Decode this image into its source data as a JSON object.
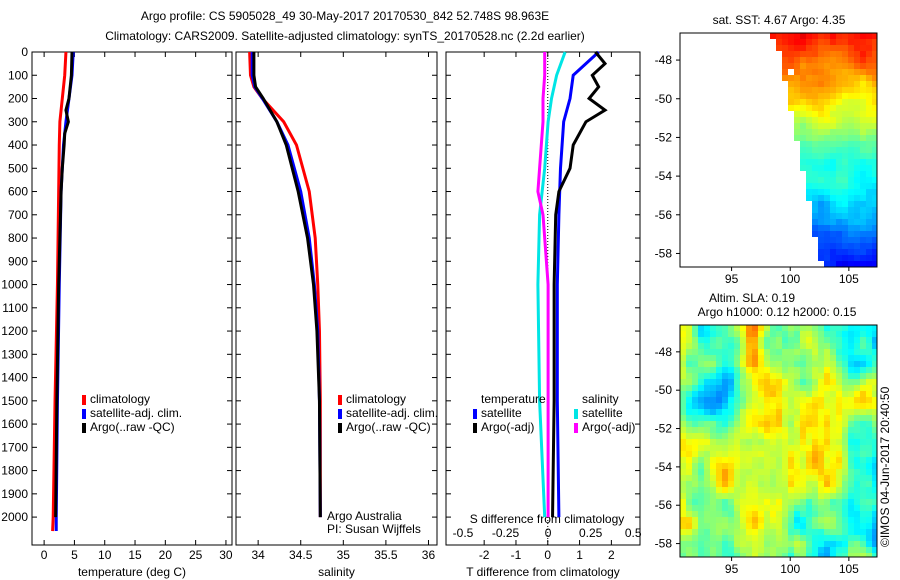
{
  "title_line1": "Argo profile: CS 5905028_49 30-May-2017 20170530_842 52.748S 98.963E",
  "title_line2": "Climatology: CARS2009. Satellite-adjusted climatology: synTS_20170528.nc (2.2d earlier)",
  "colors": {
    "climatology": "#ff0000",
    "satellite": "#0000ff",
    "argo": "#000000",
    "s_satellite": "#00e5e5",
    "s_argo": "#ff00ff"
  },
  "chart_data": [
    {
      "type": "line",
      "name": "temperature",
      "xlabel": "temperature (deg C)",
      "xlim": [
        -2,
        31
      ],
      "ylim": [
        0,
        2120
      ],
      "xticks": [
        0,
        5,
        10,
        15,
        20,
        25,
        30
      ],
      "yticks": [
        0,
        100,
        200,
        300,
        400,
        500,
        600,
        700,
        800,
        900,
        1000,
        1100,
        1200,
        1300,
        1400,
        1500,
        1600,
        1700,
        1800,
        1900,
        2000
      ],
      "legend": [
        "climatology",
        "satellite-adj. clim.",
        "Argo(..raw -QC)"
      ],
      "series": [
        {
          "name": "climatology",
          "color": "#ff0000",
          "depth": [
            0,
            100,
            200,
            300,
            400,
            600,
            1000,
            1500,
            2000,
            2060
          ],
          "values": [
            3.6,
            3.4,
            3.0,
            2.6,
            2.5,
            2.4,
            2.2,
            1.8,
            1.5,
            1.4
          ]
        },
        {
          "name": "satellite-adj. clim.",
          "color": "#0000ff",
          "depth": [
            0,
            100,
            200,
            300,
            400,
            600,
            1000,
            1500,
            2000,
            2060
          ],
          "values": [
            4.8,
            4.6,
            4.1,
            3.6,
            3.2,
            2.8,
            2.5,
            2.2,
            2.0,
            2.0
          ]
        },
        {
          "name": "Argo(..raw -QC)",
          "color": "#000000",
          "depth": [
            0,
            100,
            200,
            250,
            300,
            350,
            400,
            500,
            600,
            800,
            1000,
            1500,
            2000
          ],
          "values": [
            4.6,
            4.5,
            4.1,
            3.6,
            4.0,
            3.4,
            3.3,
            3.0,
            2.8,
            2.6,
            2.4,
            2.1,
            1.9
          ]
        }
      ]
    },
    {
      "type": "line",
      "name": "salinity",
      "xlabel": "salinity",
      "xlim": [
        33.74,
        36.1
      ],
      "ylim": [
        0,
        2120
      ],
      "xticks": [
        34,
        34.5,
        35,
        35.5,
        36
      ],
      "legend": [
        "climatology",
        "satellite-adj. clim.",
        "Argo(..raw -QC)"
      ],
      "annotation": [
        "Argo Australia",
        "PI: Susan Wijffels"
      ],
      "series": [
        {
          "name": "climatology",
          "color": "#ff0000",
          "depth": [
            0,
            100,
            150,
            200,
            300,
            400,
            600,
            800,
            1000,
            1200,
            1500,
            2000
          ],
          "values": [
            33.9,
            33.91,
            33.95,
            34.05,
            34.3,
            34.45,
            34.6,
            34.67,
            34.7,
            34.72,
            34.73,
            34.73
          ]
        },
        {
          "name": "satellite-adj. clim.",
          "color": "#0000ff",
          "depth": [
            0,
            100,
            150,
            200,
            300,
            400,
            600,
            800,
            1000,
            1200,
            1500,
            2000
          ],
          "values": [
            33.93,
            33.93,
            33.96,
            34.05,
            34.22,
            34.35,
            34.5,
            34.6,
            34.66,
            34.7,
            34.72,
            34.73
          ]
        },
        {
          "name": "Argo(..raw -QC)",
          "color": "#000000",
          "depth": [
            0,
            100,
            150,
            200,
            300,
            400,
            600,
            800,
            1000,
            1200,
            1500,
            2000
          ],
          "values": [
            33.95,
            33.95,
            33.97,
            34.06,
            34.22,
            34.33,
            34.47,
            34.58,
            34.65,
            34.69,
            34.72,
            34.73
          ]
        }
      ]
    },
    {
      "type": "line",
      "name": "difference",
      "xlabel": "T difference from climatology",
      "x2label": "S difference from climatology",
      "xlim": [
        -3.2,
        2.9
      ],
      "x2lim": [
        -0.6,
        0.54
      ],
      "ylim": [
        0,
        2120
      ],
      "xticks": [
        -2,
        -1,
        0,
        1,
        2
      ],
      "x2ticks": [
        -0.5,
        -0.25,
        0,
        0.25,
        0.5
      ],
      "legend_headers": [
        "temperature",
        "salinity"
      ],
      "legend": [
        "satellite",
        "Argo(-adj)",
        "satellite",
        "Argo(-adj)"
      ],
      "series": [
        {
          "name": "T satellite",
          "axis": "T",
          "color": "#0000ff",
          "depth": [
            0,
            50,
            100,
            200,
            300,
            500,
            700,
            1000,
            1500,
            2000
          ],
          "values": [
            1.6,
            1.2,
            0.8,
            0.7,
            0.5,
            0.4,
            0.35,
            0.3,
            0.3,
            0.35
          ]
        },
        {
          "name": "T Argo(-adj)",
          "axis": "T",
          "color": "#000000",
          "depth": [
            0,
            50,
            100,
            150,
            200,
            250,
            300,
            400,
            500,
            600,
            700,
            1000,
            1500,
            2000
          ],
          "values": [
            1.5,
            1.8,
            1.4,
            1.6,
            1.3,
            1.8,
            1.2,
            0.8,
            0.7,
            0.35,
            0.25,
            0.2,
            0.2,
            0.15
          ]
        },
        {
          "name": "S satellite",
          "axis": "S",
          "color": "#00e5e5",
          "depth": [
            0,
            100,
            200,
            300,
            500,
            700,
            1000,
            1500,
            2000
          ],
          "values": [
            0.1,
            0.05,
            0.02,
            0.0,
            -0.02,
            -0.05,
            -0.06,
            -0.05,
            -0.02
          ]
        },
        {
          "name": "S Argo(-adj)",
          "axis": "S",
          "color": "#ff00ff",
          "depth": [
            0,
            100,
            200,
            300,
            500,
            600,
            700,
            1000,
            1500,
            2000
          ],
          "values": [
            -0.02,
            -0.02,
            -0.03,
            -0.03,
            -0.05,
            -0.06,
            -0.03,
            0.0,
            0.0,
            0.0
          ]
        }
      ]
    },
    {
      "type": "heatmap",
      "name": "sst-map",
      "title": "sat. SST: 4.67  Argo: 4.35",
      "xlim": [
        90.6,
        107.4
      ],
      "ylim": [
        -58.7,
        -46.6
      ],
      "xticks": [
        95,
        100,
        105
      ],
      "yticks": [
        -48,
        -50,
        -52,
        -54,
        -56,
        -58
      ]
    },
    {
      "type": "heatmap",
      "name": "sla-map",
      "title_line1": "Altim. SLA: 0.19",
      "title_line2": "Argo h1000: 0.12 h2000: 0.15",
      "xlim": [
        90.6,
        107.4
      ],
      "ylim": [
        -58.7,
        -46.6
      ],
      "xticks": [
        95,
        100,
        105
      ],
      "yticks": [
        -48,
        -50,
        -52,
        -54,
        -56,
        -58
      ]
    }
  ],
  "credit": "©IMOS 04-Jun-2017 20:40:50"
}
